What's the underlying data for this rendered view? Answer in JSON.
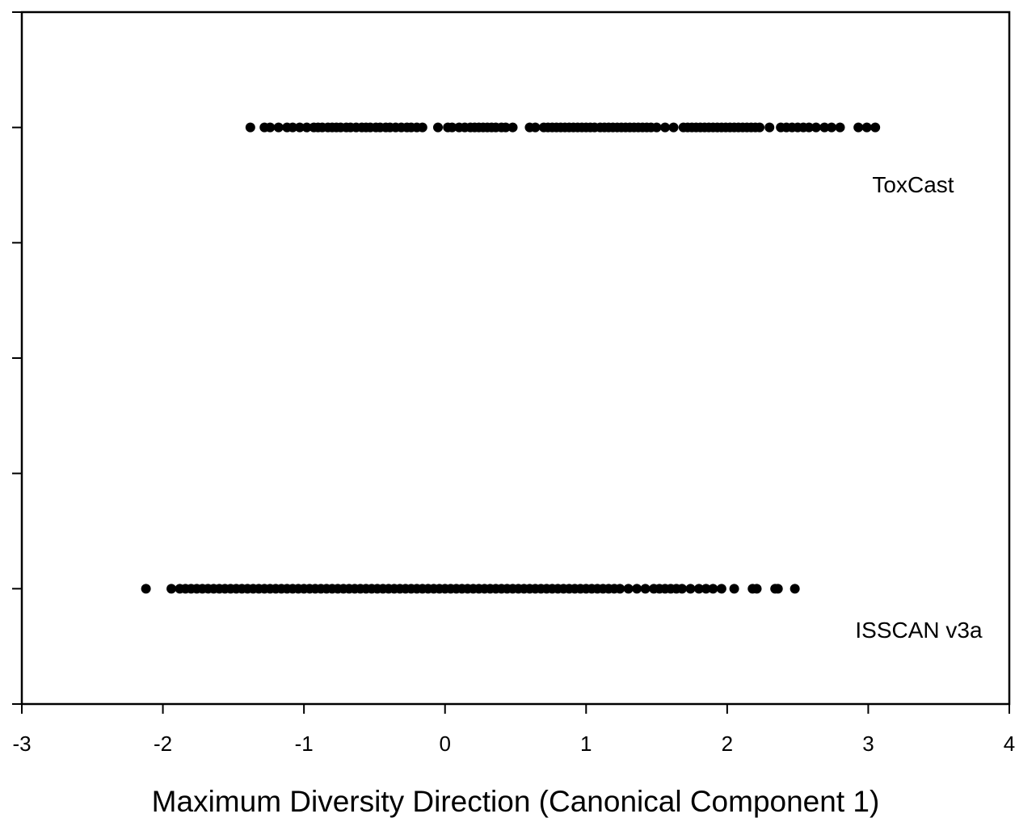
{
  "chart_data": {
    "type": "scatter",
    "title": "",
    "xlabel": "Maximum Diversity Direction (Canonical Component 1)",
    "ylabel": "",
    "xlim": [
      -3,
      4
    ],
    "ylim": [
      0,
      6
    ],
    "x_ticks": [
      -3,
      -2,
      -1,
      0,
      1,
      2,
      3,
      4
    ],
    "x_tick_labels": [
      "-3",
      "-2",
      "-1",
      "0",
      "1",
      "2",
      "3",
      "4"
    ],
    "y_ticks": [
      0,
      1,
      2,
      3,
      4,
      5,
      6
    ],
    "grid": false,
    "legend": "none",
    "marker_color": "#000000",
    "series": [
      {
        "name": "ToxCast",
        "y": 5,
        "x": [
          -1.38,
          -1.28,
          -1.24,
          -1.18,
          -1.12,
          -1.08,
          -1.03,
          -0.98,
          -0.93,
          -0.9,
          -0.87,
          -0.83,
          -0.8,
          -0.77,
          -0.74,
          -0.7,
          -0.67,
          -0.63,
          -0.59,
          -0.56,
          -0.53,
          -0.49,
          -0.46,
          -0.42,
          -0.39,
          -0.35,
          -0.31,
          -0.27,
          -0.24,
          -0.2,
          -0.16,
          -0.05,
          0.02,
          0.05,
          0.1,
          0.14,
          0.18,
          0.21,
          0.24,
          0.27,
          0.3,
          0.33,
          0.36,
          0.4,
          0.43,
          0.48,
          0.6,
          0.64,
          0.7,
          0.73,
          0.76,
          0.79,
          0.82,
          0.85,
          0.88,
          0.91,
          0.94,
          0.97,
          1.0,
          1.03,
          1.06,
          1.1,
          1.13,
          1.16,
          1.19,
          1.22,
          1.25,
          1.28,
          1.31,
          1.34,
          1.37,
          1.4,
          1.43,
          1.46,
          1.5,
          1.56,
          1.62,
          1.69,
          1.72,
          1.75,
          1.78,
          1.81,
          1.84,
          1.87,
          1.9,
          1.93,
          1.96,
          1.99,
          2.02,
          2.05,
          2.08,
          2.11,
          2.14,
          2.17,
          2.2,
          2.23,
          2.3,
          2.38,
          2.42,
          2.46,
          2.5,
          2.54,
          2.58,
          2.63,
          2.69,
          2.74,
          2.8,
          2.93,
          2.99,
          3.05
        ]
      },
      {
        "name": "ISSCAN v3a",
        "y": 1,
        "x": [
          -2.12,
          -1.94,
          -1.88,
          -1.84,
          -1.8,
          -1.76,
          -1.72,
          -1.68,
          -1.64,
          -1.6,
          -1.56,
          -1.52,
          -1.48,
          -1.44,
          -1.4,
          -1.36,
          -1.32,
          -1.28,
          -1.24,
          -1.2,
          -1.16,
          -1.12,
          -1.08,
          -1.04,
          -1.0,
          -0.96,
          -0.92,
          -0.88,
          -0.84,
          -0.8,
          -0.76,
          -0.72,
          -0.68,
          -0.64,
          -0.6,
          -0.56,
          -0.52,
          -0.48,
          -0.44,
          -0.4,
          -0.36,
          -0.32,
          -0.28,
          -0.24,
          -0.2,
          -0.16,
          -0.12,
          -0.08,
          -0.04,
          0.0,
          0.04,
          0.08,
          0.12,
          0.16,
          0.2,
          0.24,
          0.28,
          0.32,
          0.36,
          0.4,
          0.44,
          0.48,
          0.52,
          0.56,
          0.6,
          0.64,
          0.68,
          0.72,
          0.76,
          0.8,
          0.84,
          0.88,
          0.92,
          0.96,
          1.0,
          1.04,
          1.08,
          1.12,
          1.16,
          1.2,
          1.24,
          1.3,
          1.36,
          1.42,
          1.48,
          1.52,
          1.56,
          1.6,
          1.64,
          1.68,
          1.74,
          1.8,
          1.85,
          1.9,
          1.96,
          2.05,
          2.18,
          2.21,
          2.34,
          2.36,
          2.48
        ]
      }
    ]
  }
}
